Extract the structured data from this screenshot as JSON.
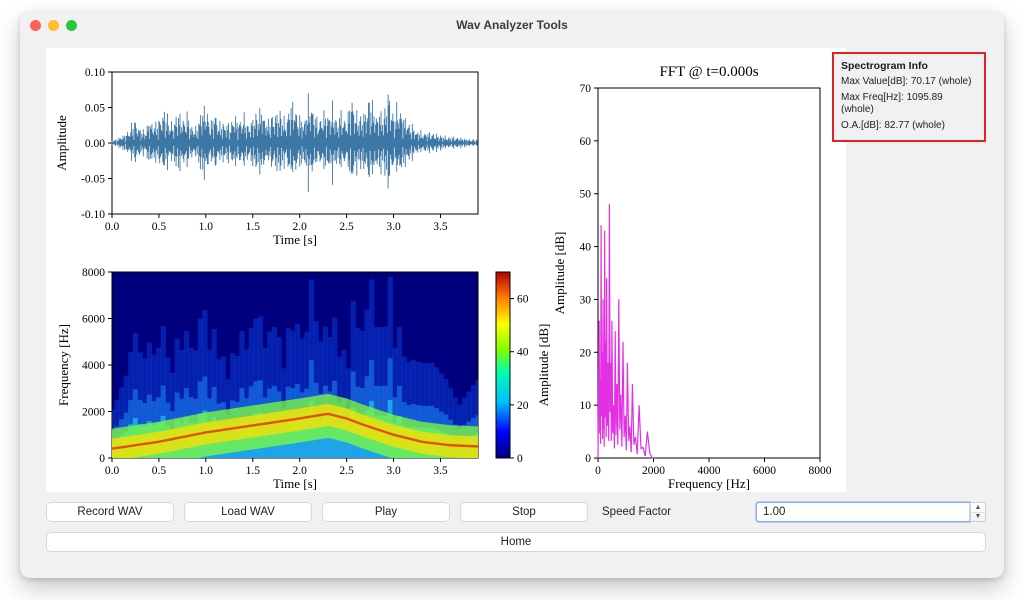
{
  "window": {
    "title": "Wav Analyzer Tools",
    "traffic_colors": [
      "#ff5f57",
      "#febc2e",
      "#28c840"
    ]
  },
  "info": {
    "header": "Spectrogram Info",
    "line1": "Max Value[dB]: 70.17 (whole)",
    "line2": "Max Freq[Hz]: 1095.89 (whole)",
    "line3": "O.A.[dB]: 82.77 (whole)"
  },
  "controls": {
    "record": "Record WAV",
    "load": "Load WAV",
    "play": "Play",
    "stop": "Stop",
    "speed_label": "Speed Factor",
    "speed_value": "1.00",
    "home": "Home"
  },
  "waveform": {
    "title": "",
    "xlabel": "Time [s]",
    "ylabel": "Amplitude",
    "xlim": [
      0.0,
      3.9
    ],
    "ylim": [
      -0.1,
      0.1
    ],
    "xticks": [
      0.0,
      0.5,
      1.0,
      1.5,
      2.0,
      2.5,
      3.0,
      3.5
    ],
    "yticks": [
      -0.1,
      -0.05,
      0.0,
      0.05,
      0.1
    ],
    "line_color": "#3d77a6",
    "frame_color": "#000000",
    "label_fontsize": 13,
    "tick_fontsize": 11,
    "samples_t": [
      0.0,
      0.05,
      0.1,
      0.15,
      0.2,
      0.25,
      0.3,
      0.35,
      0.4,
      0.45,
      0.5,
      0.55,
      0.6,
      0.65,
      0.7,
      0.75,
      0.8,
      0.85,
      0.9,
      0.95,
      1.0,
      1.05,
      1.1,
      1.15,
      1.2,
      1.25,
      1.3,
      1.35,
      1.4,
      1.45,
      1.5,
      1.55,
      1.6,
      1.65,
      1.7,
      1.75,
      1.8,
      1.85,
      1.9,
      1.95,
      2.0,
      2.05,
      2.1,
      2.15,
      2.2,
      2.25,
      2.3,
      2.35,
      2.4,
      2.45,
      2.5,
      2.55,
      2.6,
      2.65,
      2.7,
      2.75,
      2.8,
      2.85,
      2.9,
      2.95,
      3.0,
      3.05,
      3.1,
      3.15,
      3.2,
      3.25,
      3.3,
      3.35,
      3.4,
      3.45,
      3.5,
      3.55,
      3.6,
      3.65,
      3.7,
      3.75,
      3.8,
      3.85,
      3.9
    ],
    "samples_env": [
      0.005,
      0.006,
      0.01,
      0.014,
      0.028,
      0.04,
      0.024,
      0.02,
      0.034,
      0.028,
      0.038,
      0.06,
      0.042,
      0.03,
      0.05,
      0.036,
      0.046,
      0.03,
      0.026,
      0.05,
      0.058,
      0.03,
      0.05,
      0.032,
      0.04,
      0.028,
      0.042,
      0.034,
      0.048,
      0.03,
      0.044,
      0.05,
      0.052,
      0.03,
      0.046,
      0.054,
      0.052,
      0.034,
      0.064,
      0.056,
      0.04,
      0.042,
      0.08,
      0.048,
      0.034,
      0.048,
      0.044,
      0.064,
      0.04,
      0.05,
      0.03,
      0.076,
      0.05,
      0.044,
      0.058,
      0.08,
      0.044,
      0.046,
      0.05,
      0.096,
      0.044,
      0.066,
      0.042,
      0.032,
      0.028,
      0.022,
      0.018,
      0.016,
      0.016,
      0.014,
      0.012,
      0.012,
      0.01,
      0.009,
      0.008,
      0.007,
      0.006,
      0.006,
      0.006
    ]
  },
  "spectrogram": {
    "xlabel": "Time [s]",
    "ylabel": "Frequency [Hz]",
    "cb_label": "Amplitude [dB]",
    "xlim": [
      0.0,
      3.9
    ],
    "ylim": [
      0,
      8000
    ],
    "xticks": [
      0.0,
      0.5,
      1.0,
      1.5,
      2.0,
      2.5,
      3.0,
      3.5
    ],
    "yticks": [
      0,
      2000,
      4000,
      6000,
      8000
    ],
    "cb_ticks": [
      0,
      20,
      40,
      60
    ],
    "cb_stops": [
      {
        "p": 0.0,
        "c": "#00007f"
      },
      {
        "p": 0.14,
        "c": "#0000ff"
      },
      {
        "p": 0.3,
        "c": "#00bfff"
      },
      {
        "p": 0.46,
        "c": "#00ffb0"
      },
      {
        "p": 0.58,
        "c": "#7fff00"
      },
      {
        "p": 0.72,
        "c": "#ffff00"
      },
      {
        "p": 0.86,
        "c": "#ff7f00"
      },
      {
        "p": 1.0,
        "c": "#b30000"
      }
    ],
    "bg_color": "#00007f",
    "ridge_t": [
      0.0,
      0.5,
      1.0,
      1.5,
      2.0,
      2.3,
      2.5,
      2.7,
      3.0,
      3.3,
      3.6,
      3.9
    ],
    "ridge_f": [
      400,
      700,
      1100,
      1400,
      1700,
      1900,
      1700,
      1400,
      1000,
      700,
      550,
      500
    ]
  },
  "fft": {
    "title": "FFT @ t=0.000s",
    "xlabel": "Frequency [Hz]",
    "ylabel": "Amplitude [dB]",
    "xlim": [
      0,
      8000
    ],
    "ylim": [
      0,
      70
    ],
    "xticks": [
      0,
      2000,
      4000,
      6000,
      8000
    ],
    "yticks": [
      0,
      10,
      20,
      30,
      40,
      50,
      60,
      70
    ],
    "line_color": "#e330e3",
    "pts_f": [
      40,
      80,
      110,
      150,
      180,
      210,
      240,
      280,
      310,
      360,
      410,
      460,
      500,
      560,
      620,
      680,
      750,
      820,
      900,
      980,
      1060,
      1150,
      1240,
      1350,
      1480,
      1620,
      1780,
      1950
    ],
    "pts_a": [
      26,
      15,
      44,
      20,
      30,
      12,
      43,
      22,
      34,
      18,
      48,
      18,
      26,
      10,
      24,
      14,
      30,
      12,
      22,
      8,
      18,
      6,
      14,
      4,
      10,
      2,
      5,
      0
    ]
  }
}
